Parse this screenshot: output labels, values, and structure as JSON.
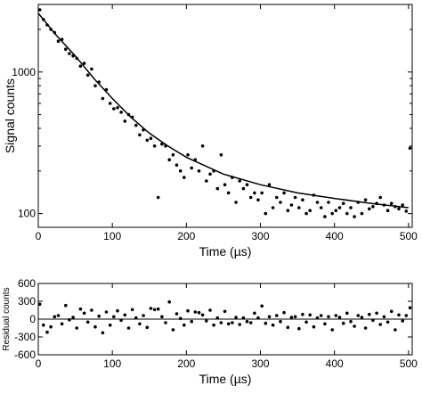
{
  "chart_data": [
    {
      "type": "scatter",
      "title": "",
      "xlabel": "Time (µs)",
      "ylabel": "Signal counts",
      "xlim": [
        0,
        505
      ],
      "ylim": [
        80,
        3000
      ],
      "yscale": "log",
      "x_ticks": [
        0,
        100,
        200,
        300,
        400,
        500
      ],
      "x_tick_labels": [
        "0",
        "100",
        "200",
        "300",
        "400",
        "500"
      ],
      "y_ticks": [
        100,
        1000
      ],
      "y_tick_labels": [
        "100",
        "1000"
      ],
      "grid": false,
      "fit_curve": {
        "x": [
          0,
          25,
          50,
          75,
          100,
          125,
          150,
          175,
          200,
          250,
          300,
          350,
          400,
          450,
          500
        ],
        "y": [
          2600,
          1800,
          1300,
          900,
          650,
          480,
          370,
          300,
          250,
          190,
          160,
          140,
          128,
          118,
          110
        ]
      },
      "points": {
        "x": [
          2,
          7,
          12,
          17,
          22,
          27,
          32,
          37,
          42,
          47,
          52,
          57,
          62,
          67,
          72,
          77,
          82,
          87,
          92,
          97,
          102,
          107,
          112,
          117,
          122,
          127,
          132,
          137,
          142,
          147,
          152,
          157,
          162,
          167,
          172,
          177,
          182,
          187,
          192,
          197,
          202,
          207,
          212,
          217,
          222,
          227,
          232,
          237,
          242,
          247,
          252,
          257,
          262,
          267,
          272,
          277,
          282,
          287,
          292,
          297,
          302,
          307,
          312,
          317,
          322,
          327,
          332,
          337,
          342,
          347,
          352,
          357,
          362,
          367,
          372,
          377,
          382,
          387,
          392,
          397,
          402,
          407,
          412,
          417,
          422,
          427,
          432,
          437,
          442,
          447,
          452,
          457,
          462,
          467,
          472,
          477,
          482,
          487,
          492,
          497,
          502
        ],
        "y": [
          2750,
          2350,
          2150,
          2000,
          1900,
          1650,
          1700,
          1450,
          1350,
          1300,
          1250,
          1100,
          1150,
          950,
          1050,
          800,
          850,
          650,
          750,
          600,
          550,
          560,
          520,
          450,
          500,
          480,
          420,
          360,
          390,
          330,
          340,
          300,
          130,
          310,
          300,
          240,
          260,
          220,
          200,
          180,
          260,
          210,
          240,
          200,
          300,
          170,
          190,
          200,
          150,
          260,
          160,
          140,
          180,
          120,
          170,
          150,
          160,
          130,
          140,
          125,
          140,
          100,
          160,
          110,
          130,
          120,
          140,
          105,
          115,
          130,
          110,
          125,
          100,
          105,
          135,
          120,
          110,
          95,
          120,
          100,
          105,
          110,
          118,
          100,
          110,
          95,
          120,
          100,
          125,
          108,
          112,
          118,
          130,
          115,
          105,
          118,
          112,
          108,
          115,
          104,
          290
        ]
      }
    },
    {
      "type": "scatter",
      "title": "",
      "xlabel": "Time (µs)",
      "ylabel": "Residual counts",
      "xlim": [
        0,
        505
      ],
      "ylim": [
        -600,
        600
      ],
      "x_ticks": [
        0,
        100,
        200,
        300,
        400,
        500
      ],
      "x_tick_labels": [
        "0",
        "100",
        "200",
        "300",
        "400",
        "500"
      ],
      "y_ticks": [
        -600,
        -300,
        0,
        300,
        600
      ],
      "y_tick_labels": [
        "-600",
        "-300",
        "0",
        "300",
        "600"
      ],
      "grid": false,
      "zero_line": true,
      "points": {
        "x": [
          2,
          7,
          12,
          17,
          22,
          27,
          32,
          37,
          42,
          47,
          52,
          57,
          62,
          67,
          72,
          77,
          82,
          87,
          92,
          97,
          102,
          107,
          112,
          117,
          122,
          127,
          132,
          137,
          142,
          147,
          152,
          157,
          162,
          167,
          172,
          177,
          182,
          187,
          192,
          197,
          202,
          207,
          212,
          217,
          222,
          227,
          232,
          237,
          242,
          247,
          252,
          257,
          262,
          267,
          272,
          277,
          282,
          287,
          292,
          297,
          302,
          307,
          312,
          317,
          322,
          327,
          332,
          337,
          342,
          347,
          352,
          357,
          362,
          367,
          372,
          377,
          382,
          387,
          392,
          397,
          402,
          407,
          412,
          417,
          422,
          427,
          432,
          437,
          442,
          447,
          452,
          457,
          462,
          467,
          472,
          477,
          482,
          487,
          492,
          497,
          502
        ],
        "y": [
          250,
          -100,
          -220,
          -130,
          40,
          60,
          -80,
          230,
          -10,
          30,
          -150,
          170,
          100,
          -50,
          150,
          -130,
          50,
          -230,
          120,
          -100,
          40,
          140,
          -20,
          70,
          -150,
          160,
          20,
          -80,
          60,
          -140,
          180,
          160,
          170,
          40,
          -60,
          290,
          -180,
          90,
          10,
          -100,
          140,
          -40,
          120,
          110,
          70,
          -30,
          150,
          -100,
          20,
          -60,
          130,
          -80,
          -60,
          30,
          -90,
          20,
          -40,
          -60,
          100,
          20,
          220,
          -70,
          40,
          -100,
          60,
          -40,
          110,
          -140,
          30,
          40,
          -160,
          80,
          -50,
          70,
          -130,
          20,
          60,
          -80,
          40,
          -180,
          60,
          30,
          -70,
          100,
          -40,
          -120,
          60,
          30,
          -150,
          80,
          -20,
          100,
          -90,
          40,
          -50,
          130,
          -180,
          70,
          -30,
          60,
          190
        ]
      }
    }
  ]
}
